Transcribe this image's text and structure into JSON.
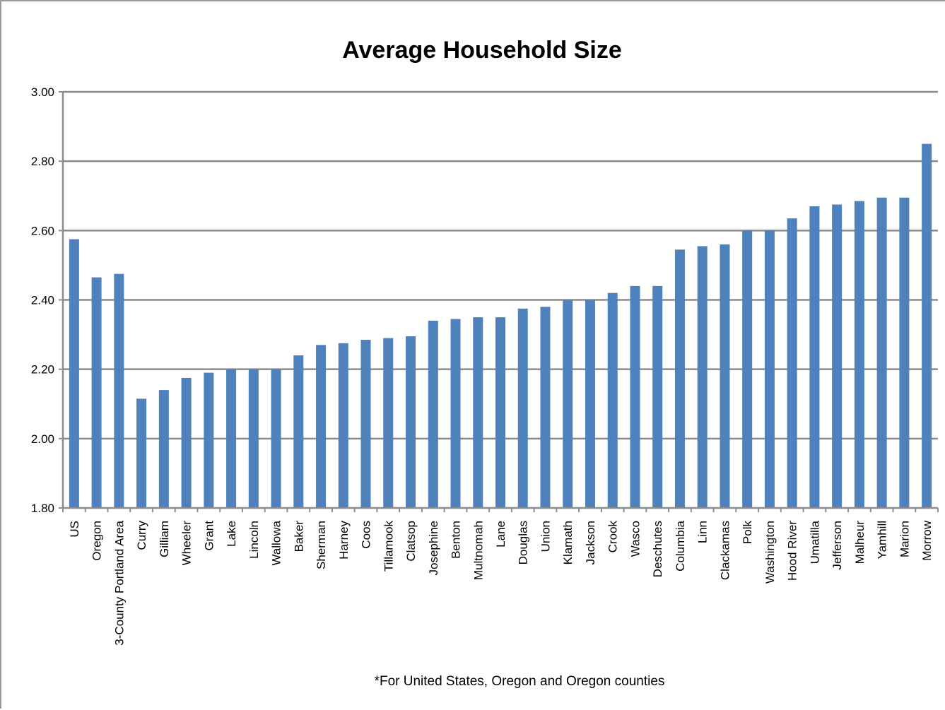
{
  "chart_data": {
    "type": "bar",
    "title": "Average Household Size",
    "xlabel": "",
    "ylabel": "",
    "ylim": [
      1.8,
      3.0
    ],
    "yticks": [
      1.8,
      2.0,
      2.2,
      2.4,
      2.6,
      2.8,
      3.0
    ],
    "ytick_labels": [
      "1.80",
      "2.00",
      "2.20",
      "2.40",
      "2.60",
      "2.80",
      "3.00"
    ],
    "grid": true,
    "legend": "none",
    "bar_color": "#4f81bd",
    "categories": [
      "US",
      "Oregon",
      "3-County Portland Area",
      "Curry",
      "Gilliam",
      "Wheeler",
      "Grant",
      "Lake",
      "Lincoln",
      "Wallowa",
      "Baker",
      "Sherman",
      "Harney",
      "Coos",
      "Tillamook",
      "Clatsop",
      "Josephine",
      "Benton",
      "Multnomah",
      "Lane",
      "Douglas",
      "Union",
      "Klamath",
      "Jackson",
      "Crook",
      "Wasco",
      "Deschutes",
      "Columbia",
      "Linn",
      "Clackamas",
      "Polk",
      "Washington",
      "Hood River",
      "Umatilla",
      "Jefferson",
      "Malheur",
      "Yamhill",
      "Marion",
      "Morrow"
    ],
    "values": [
      2.575,
      2.465,
      2.475,
      2.115,
      2.14,
      2.175,
      2.19,
      2.2,
      2.2,
      2.2,
      2.24,
      2.27,
      2.275,
      2.285,
      2.29,
      2.295,
      2.34,
      2.345,
      2.35,
      2.35,
      2.375,
      2.38,
      2.4,
      2.4,
      2.42,
      2.44,
      2.44,
      2.545,
      2.555,
      2.56,
      2.6,
      2.6,
      2.635,
      2.67,
      2.675,
      2.685,
      2.695,
      2.695,
      2.85
    ],
    "annotation": "*For United States, Oregon and Oregon counties"
  }
}
